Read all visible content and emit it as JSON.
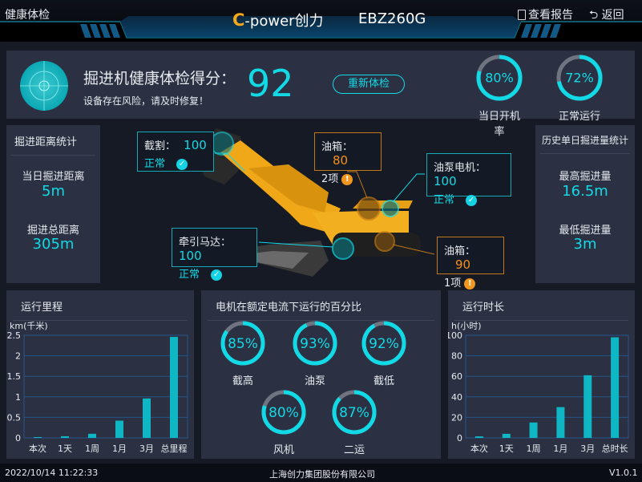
{
  "header": {
    "page_title": "健康体检",
    "brand": "C-power创力",
    "model": "EBZ260G",
    "report_label": "查看报告",
    "back_label": "返回"
  },
  "score": {
    "title": "掘进机健康体检得分：",
    "value": "92",
    "message": "设备存在风险，请及时修复！",
    "recheck_label": "重新体检",
    "gauges": [
      {
        "value": 80,
        "text": "80%",
        "label": "当日开机率"
      },
      {
        "value": 72,
        "text": "72%",
        "label": "正常运行率"
      }
    ]
  },
  "distance": {
    "title": "掘进距离统计",
    "today_label": "当日掘进距离",
    "today_value": "5m",
    "total_label": "掘进总距离",
    "total_value": "305m"
  },
  "history": {
    "title": "历史单日掘进量统计",
    "max_label": "最高掘进量",
    "max_value": "16.5m",
    "min_label": "最低掘进量",
    "min_value": "3m"
  },
  "callouts": [
    {
      "name": "截割：",
      "value": "100",
      "status": "正常",
      "type": "ok"
    },
    {
      "name": "油箱：",
      "value": "80",
      "status": "2项",
      "type": "warn"
    },
    {
      "name": "油泵电机：",
      "value": "100",
      "status": "正常",
      "type": "ok"
    },
    {
      "name": "牵引马达：",
      "value": "100",
      "status": "正常",
      "type": "ok"
    },
    {
      "name": "油箱：",
      "value": "90",
      "status": "1项",
      "type": "warn"
    }
  ],
  "motor": {
    "title": "电机在额定电流下运行的百分比",
    "gauges": [
      {
        "value": 85,
        "text": "85%",
        "label": "截高"
      },
      {
        "value": 93,
        "text": "93%",
        "label": "油泵"
      },
      {
        "value": 92,
        "text": "92%",
        "label": "截低"
      },
      {
        "value": 80,
        "text": "80%",
        "label": "风机"
      },
      {
        "value": 87,
        "text": "87%",
        "label": "二运"
      }
    ]
  },
  "chart_data": [
    {
      "type": "bar",
      "title": "运行里程",
      "ylabel": "km(千米)",
      "categories": [
        "本次",
        "1天",
        "1周",
        "1月",
        "3月",
        "总里程"
      ],
      "values": [
        0.02,
        0.04,
        0.1,
        0.42,
        0.96,
        2.46
      ],
      "ylim": [
        0,
        2.5
      ],
      "yticks": [
        "0",
        "0.5",
        "1",
        "1.5",
        "2",
        "2.5"
      ],
      "grid": true,
      "color": "#0fb6c4"
    },
    {
      "type": "bar",
      "title": "运行时长",
      "ylabel": "h(小时)",
      "categories": [
        "本次",
        "1天",
        "1周",
        "1月",
        "3月",
        "总时长"
      ],
      "values": [
        1.5,
        4,
        15,
        30,
        61,
        98
      ],
      "ylim": [
        0,
        100
      ],
      "yticks": [
        "0",
        "20",
        "40",
        "60",
        "80",
        "100"
      ],
      "grid": true,
      "color": "#0fb6c4"
    }
  ],
  "footer": {
    "datetime": "2022/10/14 11:22:33",
    "company": "上海创力集团股份有限公司",
    "version": "V1.0.1"
  },
  "colors": {
    "accent": "#12d9e6",
    "warn": "#f5901e",
    "panel": "#2b3142"
  }
}
